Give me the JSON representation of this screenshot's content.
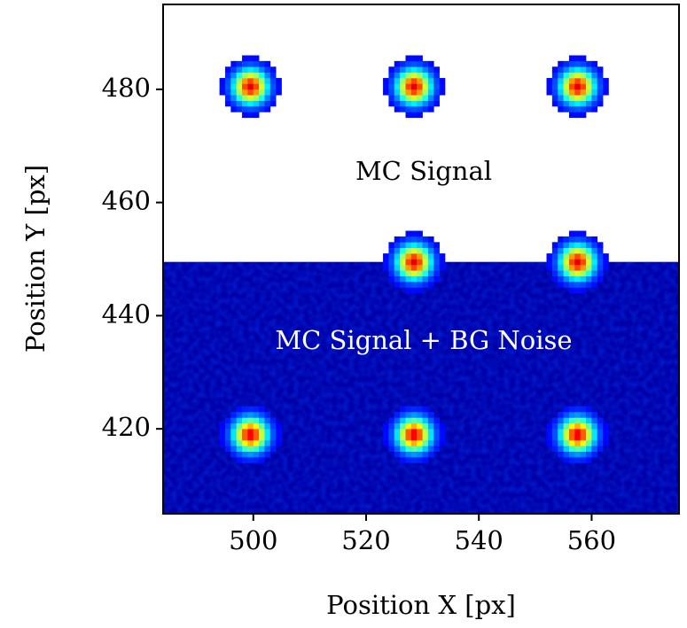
{
  "chart_data": {
    "type": "image",
    "xlabel": "Position X [px]",
    "ylabel": "Position Y [px]",
    "xlim": [
      484,
      575.5
    ],
    "ylim": [
      405,
      495
    ],
    "xticks": [
      500,
      520,
      540,
      560
    ],
    "yticks": [
      420,
      440,
      460,
      480
    ],
    "noise_ylim": [
      405,
      449.5
    ],
    "spots": {
      "x": [
        499.5,
        528.5,
        557.5,
        528.5,
        557.5,
        499.5,
        528.5,
        557.5
      ],
      "y": [
        480.5,
        480.5,
        480.5,
        449.5,
        449.5,
        419,
        419,
        419
      ]
    },
    "colormap": "jet",
    "annotations": [
      "MC Signal",
      "MC Signal + BG Noise"
    ]
  }
}
